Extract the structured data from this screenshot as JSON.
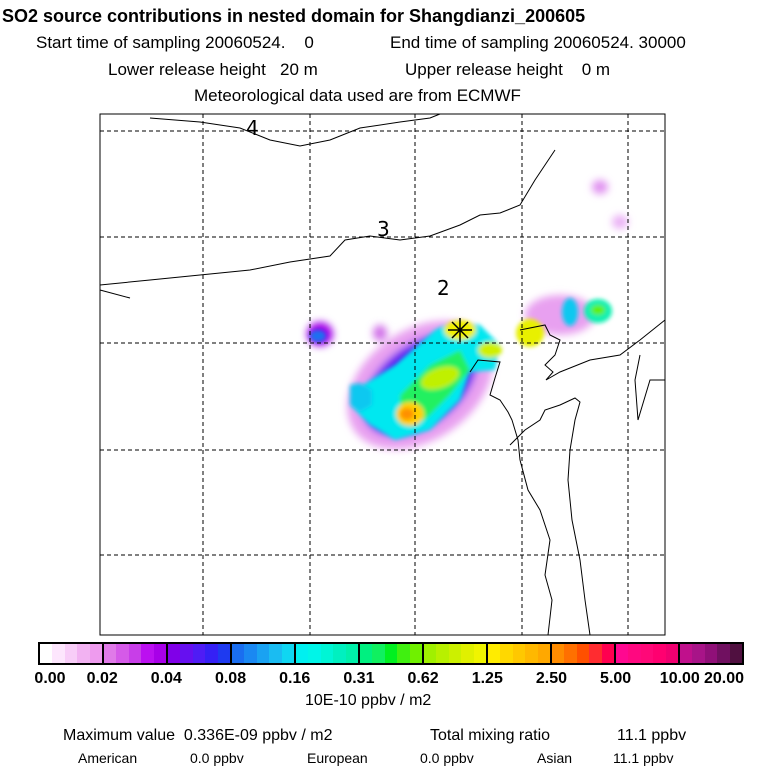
{
  "title": "SO2 source contributions in nested domain for Shangdianzi_200605",
  "start_label": "Start time of sampling 20060524.    0",
  "end_label": "End time of sampling 20060524. 30000",
  "lower_label": "Lower release height   20 m",
  "upper_label": "Upper release height    0 m",
  "met_label": "Meteorological data used are from ECMWF",
  "map": {
    "contour_labels": [
      "4",
      "3",
      "2"
    ],
    "receptor_marker": "star-icon"
  },
  "colorbar": {
    "ticks": [
      "0.00",
      "0.02",
      "0.04",
      "0.08",
      "0.16",
      "0.31",
      "0.62",
      "1.25",
      "2.50",
      "5.00",
      "10.00",
      "20.00"
    ],
    "units": "10E-10 ppbv / m2",
    "segments": [
      [
        "#ffffff",
        "#fde6fd",
        "#f8cdf8",
        "#f2b2f2",
        "#ee9bee"
      ],
      [
        "#e07ae8",
        "#d55ae8",
        "#c83ee8",
        "#bb10f0",
        "#a800e8"
      ],
      [
        "#8000e8",
        "#6610f0",
        "#4f1cf5",
        "#3520f5",
        "#1e3af0"
      ],
      [
        "#1a6ef0",
        "#1a88f2",
        "#1aa2f2",
        "#1abcf2",
        "#10d6f2"
      ],
      [
        "#00f0f0",
        "#00f5e8",
        "#00f5d5",
        "#00f0c0",
        "#00f0aa"
      ],
      [
        "#00f080",
        "#10f060",
        "#00f020",
        "#40f010",
        "#70f000"
      ],
      [
        "#a0f000",
        "#b8f000",
        "#ccf000",
        "#e0f000",
        "#f0f400"
      ],
      [
        "#ffec00",
        "#ffd800",
        "#ffc800",
        "#ffb800",
        "#ffa800"
      ],
      [
        "#ff8c00",
        "#ff7000",
        "#ff5000",
        "#ff2c30",
        "#ff0050"
      ],
      [
        "#ff0890",
        "#ff0880",
        "#ff0878",
        "#ff0070",
        "#f00070"
      ],
      [
        "#c0108c",
        "#a81488",
        "#901078",
        "#701060",
        "#501040"
      ]
    ]
  },
  "footer": {
    "max_label": "Maximum value  0.336E-09 ppbv / m2",
    "total_label": "Total mixing ratio",
    "total_value": "11.1 ppbv",
    "american_label": "American",
    "american_value": "0.0 ppbv",
    "european_label": "European",
    "european_value": "0.0 ppbv",
    "asian_label": "Asian",
    "asian_value": "11.1 ppbv"
  }
}
